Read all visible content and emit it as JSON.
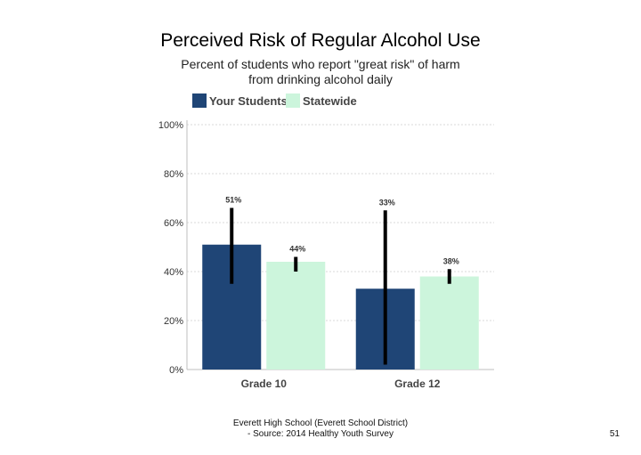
{
  "slide": {
    "title": "Perceived Risk of Regular Alcohol Use",
    "subtitle_line1": "Percent of students who report \"great risk\" of harm",
    "subtitle_line2": "from drinking alcohol daily",
    "footer_line1": "Everett High School (Everett School District)",
    "footer_line2": "- Source: 2014 Healthy Youth Survey",
    "page_number": "51"
  },
  "chart_data": {
    "type": "bar",
    "title": "",
    "xlabel": "",
    "ylabel": "",
    "categories": [
      "Grade 10",
      "Grade 12"
    ],
    "series": [
      {
        "name": "Your Students",
        "color": "#1f4576",
        "values": [
          51,
          33
        ],
        "labels": [
          "51%",
          "33%"
        ],
        "error_low": [
          35,
          2
        ],
        "error_high": [
          66,
          65
        ]
      },
      {
        "name": "Statewide",
        "color": "#ccf5dc",
        "values": [
          44,
          38
        ],
        "labels": [
          "44%",
          "38%"
        ],
        "error_low": [
          40,
          35
        ],
        "error_high": [
          46,
          41
        ]
      }
    ],
    "ylim": [
      0,
      100
    ],
    "yticks": [
      0,
      20,
      40,
      60,
      80,
      100
    ],
    "ytick_labels": [
      "0%",
      "20%",
      "40%",
      "60%",
      "80%",
      "100%"
    ],
    "grid": true,
    "legend": "top"
  }
}
